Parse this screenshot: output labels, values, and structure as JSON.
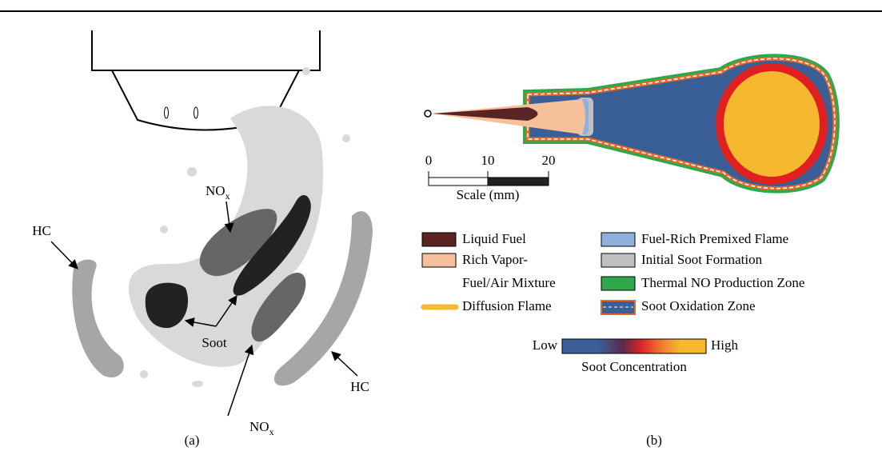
{
  "panel_a": {
    "labels": [
      {
        "text": "HC"
      },
      {
        "text": "NO",
        "sub": "x"
      },
      {
        "text": "Soot"
      },
      {
        "text": "NO",
        "sub": "x"
      },
      {
        "text": "HC"
      }
    ],
    "caption": "(a)"
  },
  "panel_b": {
    "scale": {
      "ticks": [
        "0",
        "10",
        "20"
      ],
      "label": "Scale (mm)"
    },
    "legend": [
      [
        "Liquid Fuel"
      ],
      [
        "Rich Vapor-",
        "Fuel/Air Mixture"
      ],
      [
        "Diffusion Flame"
      ],
      [
        "Fuel-Rich Premixed Flame"
      ],
      [
        "Initial Soot Formation"
      ],
      [
        "Thermal NO Production Zone"
      ],
      [
        "Soot Oxidation Zone"
      ]
    ],
    "colorbar": {
      "low": "Low",
      "high": "High",
      "label": "Soot Concentration"
    },
    "caption": "(b)"
  }
}
